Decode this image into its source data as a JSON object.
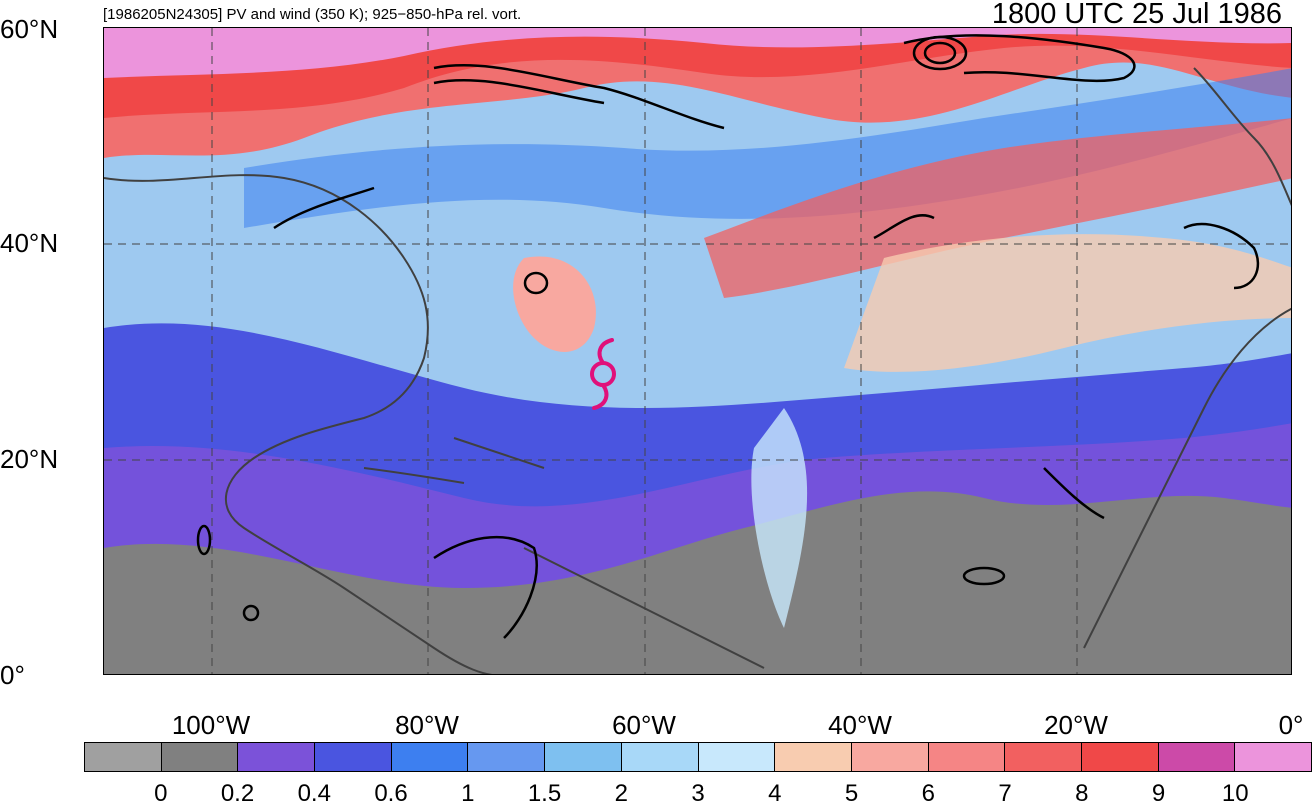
{
  "header": {
    "left_title": "[1986205N24305] PV and wind (350 K); 925−850-hPa rel. vort.",
    "right_title": "1800 UTC 25 Jul 1986"
  },
  "axes": {
    "lat_labels": [
      "60°N",
      "40°N",
      "20°N",
      "0°"
    ],
    "lon_labels": [
      "100°W",
      "80°W",
      "60°W",
      "40°W",
      "20°W",
      "0°"
    ]
  },
  "colorbar": {
    "labels": [
      "0",
      "0.2",
      "0.4",
      "0.6",
      "1",
      "1.5",
      "2",
      "3",
      "4",
      "5",
      "6",
      "7",
      "8",
      "9",
      "10"
    ],
    "colors": [
      "#a0a0a0",
      "#808080",
      "#7b52d9",
      "#4a55e0",
      "#3d7ff0",
      "#6698f0",
      "#7ec0f0",
      "#a8d8f8",
      "#c8e8fc",
      "#f8ccb0",
      "#f8a8a0",
      "#f58585",
      "#f26060",
      "#f04848",
      "#cc4aa8",
      "#ec94dc"
    ]
  },
  "map_colors": {
    "background": "#9ec9f0",
    "coast": "#404040",
    "contour": "#000000",
    "storm_symbol": "#e0107a"
  },
  "storm_symbol": {
    "name": "tropical-cyclone-symbol",
    "lat": 28,
    "lon": -63
  }
}
